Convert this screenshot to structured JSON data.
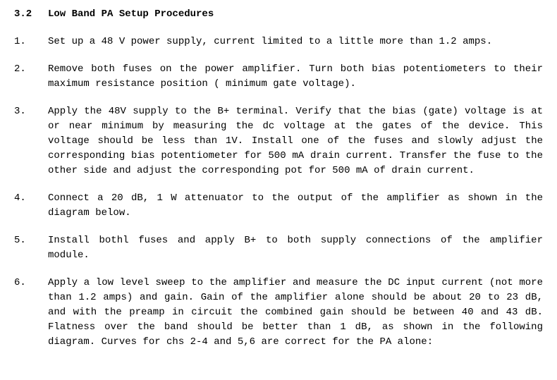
{
  "section": {
    "number": "3.2",
    "title": "Low Band PA Setup Procedures"
  },
  "items": [
    {
      "number": "1.",
      "text": "Set up a 48 V power supply, current limited to a little more than 1.2 amps."
    },
    {
      "number": "2.",
      "text": "Remove both fuses on the power amplifier. Turn both bias potentiometers to their maximum resistance position  ( minimum gate voltage)."
    },
    {
      "number": "3.",
      "text": "Apply the 48V supply to the B+ terminal. Verify that the bias (gate) voltage is at or near minimum by  measuring the dc voltage at the gates of the device. This voltage should be less than 1V. Install one of the fuses and slowly adjust the corresponding bias potentiometer for 500 mA drain current. Transfer the fuse to the other side and adjust the corresponding pot for 500 mA of drain current."
    },
    {
      "number": "4.",
      "text": "Connect a 20 dB, 1 W attenuator to the output of the amplifier as shown in the diagram below."
    },
    {
      "number": "5.",
      "text": "Install bothl fuses and apply B+ to both supply connections of the amplifier module."
    },
    {
      "number": "6.",
      "text": "Apply a low level sweep to the amplifier and measure the DC input current (not more than 1.2 amps) and gain.  Gain of the amplifier alone should be about 20 to 23 dB, and with the preamp in circuit the combined gain should be between 40 and 43 dB.  Flatness over the band should be better than 1 dB, as shown in the following diagram.  Curves for chs 2-4 and 5,6 are correct for the PA alone:"
    }
  ],
  "colors": {
    "background": "#ffffff",
    "text": "#000000"
  },
  "typography": {
    "font_family": "Courier New",
    "font_size": 14,
    "line_height": 1.5
  }
}
